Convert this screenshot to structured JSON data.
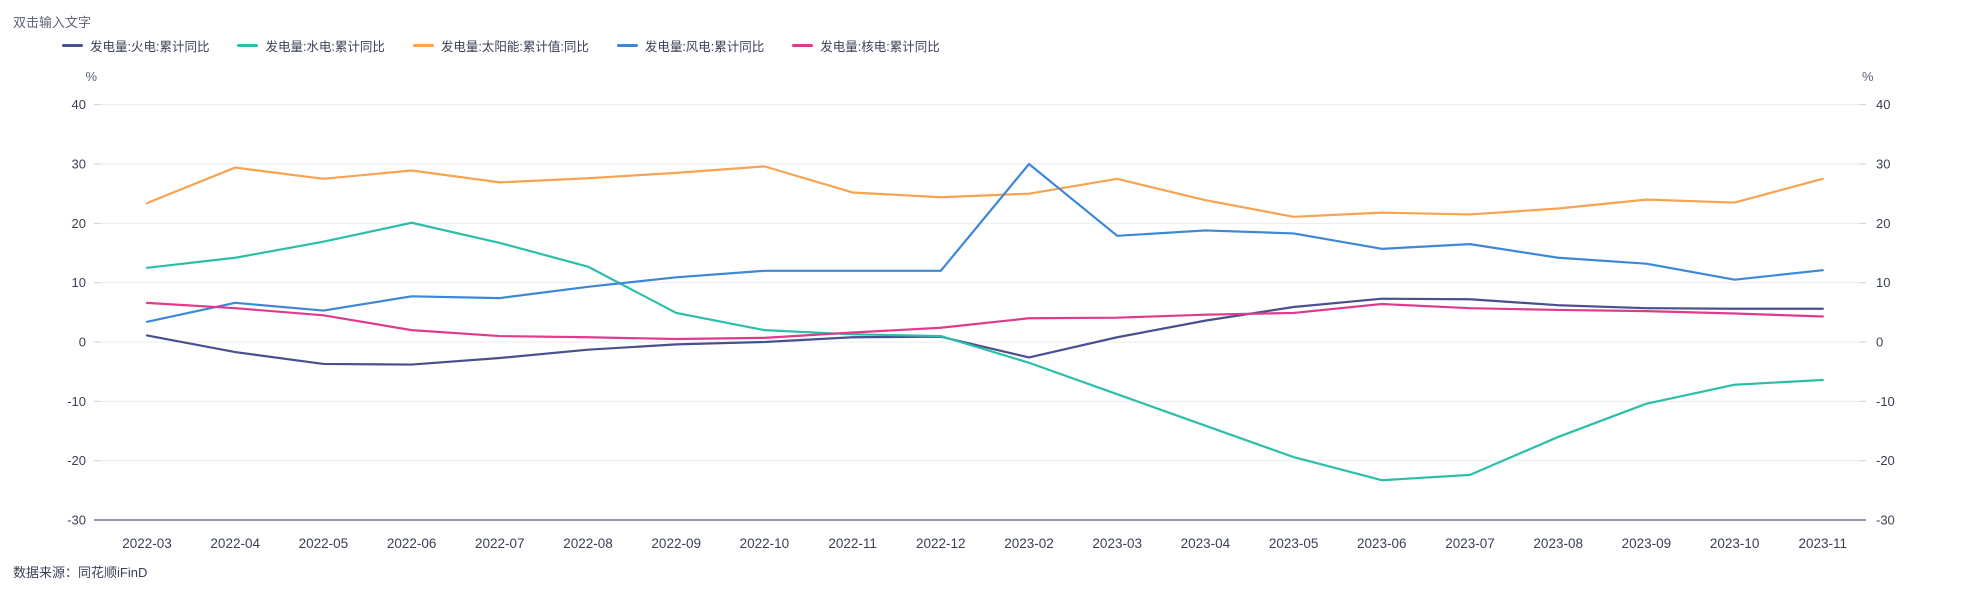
{
  "title": "双击输入文字",
  "source": "数据来源：同花顺iFinD",
  "axis": {
    "unit_left": "%",
    "unit_right": "%",
    "yticks": [
      40,
      30,
      20,
      10,
      0,
      -10,
      -20,
      -30
    ]
  },
  "colors": {
    "background": "#FFFFFF",
    "grid": "#E9EBF3",
    "tick": "#C9CEDB",
    "axis_line": "#535E7E",
    "tick_text": "#3A4155",
    "unit_text": "#5A6077",
    "title_text": "#5F6477",
    "legend_text": "#3B4155",
    "source_text": "#3A4155"
  },
  "chart_data": {
    "type": "line",
    "title": "双击输入文字",
    "xlabel": "",
    "ylabel": "%",
    "ylim": [
      -30,
      40
    ],
    "ytick_step": 10,
    "grid": true,
    "dual_axis": true,
    "legend_position": "top-left",
    "categories": [
      "2022-03",
      "2022-04",
      "2022-05",
      "2022-06",
      "2022-07",
      "2022-08",
      "2022-09",
      "2022-10",
      "2022-11",
      "2022-12",
      "2023-02",
      "2023-03",
      "2023-04",
      "2023-05",
      "2023-06",
      "2023-07",
      "2023-08",
      "2023-09",
      "2023-10",
      "2023-11"
    ],
    "series": [
      {
        "id": "thermal",
        "name": "发电量:火电:累计同比",
        "color": "#47518E",
        "values": [
          1.1,
          -1.7,
          -3.7,
          -3.8,
          -2.7,
          -1.3,
          -0.4,
          0.0,
          0.8,
          0.9,
          -2.6,
          0.8,
          3.6,
          5.9,
          7.3,
          7.2,
          6.2,
          5.7,
          5.6,
          5.6
        ]
      },
      {
        "id": "hydro",
        "name": "发电量:水电:累计同比",
        "color": "#2CBFA7",
        "values": [
          12.5,
          14.2,
          16.9,
          20.1,
          16.7,
          12.7,
          4.9,
          2.0,
          1.3,
          1.0,
          -3.5,
          -8.8,
          -14.1,
          -19.4,
          -23.3,
          -22.4,
          -16.0,
          -10.4,
          -7.2,
          -6.4
        ]
      },
      {
        "id": "solar",
        "name": "发电量:太阳能:累计值:同比",
        "color": "#F7A351",
        "values": [
          23.4,
          29.4,
          27.5,
          28.9,
          26.9,
          27.6,
          28.5,
          29.6,
          25.2,
          24.4,
          25.0,
          27.5,
          23.9,
          21.1,
          21.8,
          21.5,
          22.5,
          24.0,
          23.5,
          27.5
        ]
      },
      {
        "id": "wind",
        "name": "发电量:风电:累计同比",
        "color": "#3D87D9",
        "values": [
          3.4,
          6.6,
          5.3,
          7.7,
          7.4,
          9.3,
          10.9,
          12.0,
          12.0,
          12.0,
          30.0,
          17.9,
          18.8,
          18.3,
          15.7,
          16.5,
          14.2,
          13.2,
          10.5,
          12.1
        ]
      },
      {
        "id": "nuclear",
        "name": "发电量:核电:累计同比",
        "color": "#DF3A8C",
        "values": [
          6.6,
          5.7,
          4.5,
          2.0,
          1.0,
          0.8,
          0.5,
          0.7,
          1.6,
          2.4,
          4.0,
          4.1,
          4.6,
          4.9,
          6.4,
          5.7,
          5.4,
          5.2,
          4.8,
          4.3
        ]
      }
    ]
  }
}
